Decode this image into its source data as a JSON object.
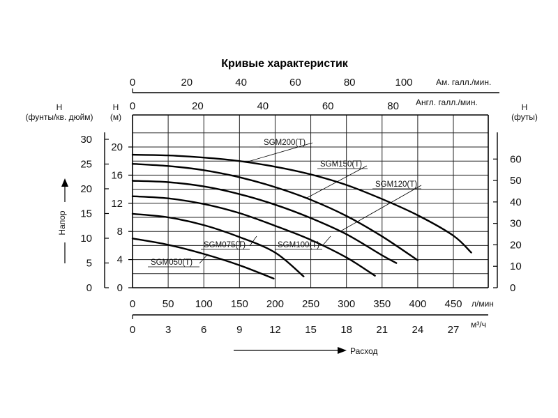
{
  "chart_data": {
    "type": "line",
    "title": "Кривые характеристик",
    "xlabel": "Расход",
    "ylabel": "Напор",
    "flow_unit_lpm": "л/мин",
    "flow_unit_m3h": "м³/ч",
    "us_gpm_label": "Ам. галл./мин.",
    "uk_gpm_label": "Англ. галл./мин.",
    "psi_label": [
      "H",
      "(фунты/кв. дюйм)"
    ],
    "m_label": [
      "H",
      "(м)"
    ],
    "ft_label": [
      "H",
      "(футы)"
    ],
    "lpm_ticks": [
      "0",
      "50",
      "100",
      "150",
      "200",
      "250",
      "300",
      "350",
      "400",
      "450"
    ],
    "m3h_ticks": [
      "0",
      "3",
      "6",
      "9",
      "12",
      "15",
      "18",
      "21",
      "24",
      "27"
    ],
    "us_gpm_ticks": [
      "0",
      "20",
      "40",
      "60",
      "80",
      "100"
    ],
    "uk_gpm_ticks": [
      "0",
      "20",
      "40",
      "60",
      "80"
    ],
    "m_ticks": [
      "0",
      "4",
      "8",
      "12",
      "16",
      "20"
    ],
    "psi_ticks": [
      "0",
      "5",
      "10",
      "15",
      "20",
      "25",
      "30"
    ],
    "ft_ticks": [
      "0",
      "10",
      "20",
      "30",
      "40",
      "50",
      "60"
    ],
    "xlim": [
      0,
      490
    ],
    "ylim": [
      0,
      23
    ],
    "grid": true,
    "series": [
      {
        "name": "SGM050(T)",
        "x": [
          0,
          50,
          100,
          150,
          198
        ],
        "y": [
          7.0,
          6.1,
          4.8,
          3.2,
          1.3
        ]
      },
      {
        "name": "SGM075(T)",
        "x": [
          0,
          50,
          100,
          150,
          200,
          240
        ],
        "y": [
          10.5,
          10.0,
          8.9,
          7.2,
          5.0,
          1.6
        ]
      },
      {
        "name": "SGM100(T)",
        "x": [
          0,
          50,
          100,
          150,
          200,
          250,
          300,
          340
        ],
        "y": [
          13.0,
          12.7,
          11.9,
          10.6,
          8.8,
          6.8,
          4.3,
          1.7
        ]
      },
      {
        "name": "SGM120(T)",
        "x": [
          0,
          50,
          100,
          150,
          200,
          250,
          300,
          350,
          370
        ],
        "y": [
          15.2,
          15.0,
          14.4,
          13.3,
          11.8,
          9.9,
          7.6,
          4.6,
          3.5
        ]
      },
      {
        "name": "SGM150(T)",
        "x": [
          0,
          50,
          100,
          150,
          200,
          250,
          300,
          350,
          400
        ],
        "y": [
          17.6,
          17.3,
          16.7,
          15.7,
          14.3,
          12.5,
          10.2,
          7.3,
          3.9
        ]
      },
      {
        "name": "SGM200(T)",
        "x": [
          0,
          50,
          100,
          150,
          200,
          250,
          300,
          350,
          400,
          450,
          475
        ],
        "y": [
          18.9,
          18.8,
          18.5,
          18.0,
          17.2,
          16.1,
          14.6,
          12.6,
          10.3,
          7.4,
          5.0
        ]
      }
    ]
  }
}
